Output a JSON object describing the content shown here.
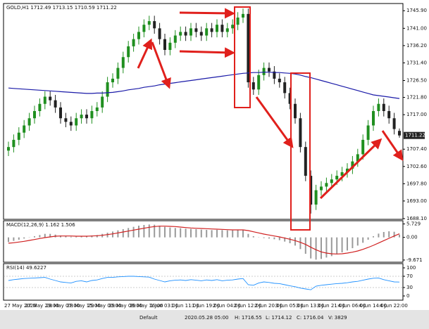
{
  "chart_data": [
    {
      "type": "candlestick",
      "title": "GOLD,H1  1712.49 1713.15 1710.59 1711.22",
      "up_color": "#1f8f1f",
      "down_color": "#222222",
      "categories": [
        "27 May 2020",
        null,
        null,
        null,
        "27 May 23:00",
        null,
        null,
        null,
        "28 May 07:00",
        null,
        null,
        null,
        "28 May 15:00",
        null,
        null,
        null,
        "29 May 00:00",
        null,
        null,
        null,
        "29 May 08:00",
        null,
        null,
        null,
        "29 May 16:00",
        null,
        null,
        null,
        "1 Jun 03:00",
        null,
        null,
        null,
        "1 Jun 11:00",
        null,
        null,
        null,
        "1 Jun 19:00",
        null,
        null,
        null,
        "2 Jun 04:00",
        null,
        null,
        null,
        "2 Jun 12:00",
        null,
        null,
        null,
        "2 Jun 20:00",
        null,
        null,
        null,
        "3 Jun 05:00",
        null,
        null,
        null,
        "3 Jun 13:00",
        null,
        null,
        null,
        "3 Jun 21:00",
        null,
        null,
        null,
        "4 Jun 06:00",
        null,
        null,
        null,
        "4 Jun 14:00",
        null,
        null,
        null,
        "4 Jun 22:00",
        null,
        null,
        null
      ],
      "open": [
        1707,
        1708,
        1710,
        1712,
        1714,
        1716,
        1718,
        1720,
        1722,
        1721,
        1719,
        1716,
        1715,
        1714,
        1716,
        1717,
        1716,
        1718,
        1719,
        1722,
        1726,
        1727,
        1730,
        1733,
        1736,
        1738,
        1740,
        1742,
        1743,
        1741,
        1738,
        1735,
        1737,
        1739,
        1740,
        1739,
        1741,
        1740,
        1739,
        1741,
        1740,
        1742,
        1740,
        1741,
        1742,
        1744,
        1745,
        1726,
        1724,
        1728,
        1730,
        1729,
        1727,
        1726,
        1723,
        1720,
        1716,
        1708,
        1700,
        1692,
        1696,
        1697,
        1698,
        1699,
        1700,
        1701,
        1702,
        1704,
        1706,
        1710,
        1714,
        1718,
        1720,
        1718,
        1716,
        1712.49
      ],
      "high": [
        1709.5,
        1711.5,
        1713.5,
        1715.5,
        1717.5,
        1719.5,
        1721.5,
        1723.5,
        1723.5,
        1722.5,
        1720.5,
        1717.5,
        1716.5,
        1717.5,
        1718.5,
        1718.5,
        1719.5,
        1720.5,
        1723.5,
        1727.5,
        1728.5,
        1731.5,
        1734.5,
        1737.5,
        1739.5,
        1741.5,
        1743.5,
        1744.5,
        1744.5,
        1742.5,
        1739.5,
        1738.5,
        1740.5,
        1741.5,
        1741.5,
        1742.5,
        1742.5,
        1741.5,
        1742.5,
        1742.5,
        1743.5,
        1743.5,
        1742.5,
        1743.5,
        1745.5,
        1746.5,
        1746.5,
        1727.5,
        1729.5,
        1731.5,
        1731.5,
        1730.5,
        1728.5,
        1727.5,
        1724.5,
        1721.5,
        1717.5,
        1709.5,
        1701.5,
        1697.5,
        1698.5,
        1699.5,
        1700.5,
        1701.5,
        1702.5,
        1703.5,
        1705.5,
        1707.5,
        1711.5,
        1715.5,
        1719.5,
        1721.5,
        1721.5,
        1719.5,
        1717.5,
        1713.15
      ],
      "low": [
        1705.5,
        1706.5,
        1708.5,
        1710.5,
        1712.5,
        1714.5,
        1716.5,
        1718.5,
        1719.5,
        1717.5,
        1714.5,
        1713.5,
        1712.5,
        1712.5,
        1714.5,
        1714.5,
        1714.5,
        1716.5,
        1717.5,
        1720.5,
        1724.5,
        1725.5,
        1728.5,
        1731.5,
        1734.5,
        1736.5,
        1738.5,
        1740.5,
        1739.5,
        1736.5,
        1733.5,
        1733.5,
        1735.5,
        1737.5,
        1737.5,
        1737.5,
        1738.5,
        1737.5,
        1737.5,
        1738.5,
        1738.5,
        1738.5,
        1738.5,
        1739.5,
        1740.5,
        1742.5,
        1724.5,
        1722.5,
        1722.5,
        1726.5,
        1727.5,
        1725.5,
        1724.5,
        1721.5,
        1718.5,
        1714.5,
        1706.5,
        1698.5,
        1689.5,
        1690.5,
        1694.5,
        1695.5,
        1696.5,
        1697.5,
        1698.5,
        1699.5,
        1700.5,
        1702.5,
        1704.5,
        1708.5,
        1712.5,
        1716.5,
        1716.5,
        1714.5,
        1711.5,
        1710.59
      ],
      "close": [
        1708,
        1710,
        1712,
        1714,
        1716,
        1718,
        1720,
        1722,
        1721,
        1719,
        1716,
        1715,
        1714,
        1716,
        1717,
        1716,
        1718,
        1719,
        1722,
        1726,
        1727,
        1730,
        1733,
        1736,
        1738,
        1740,
        1742,
        1743,
        1741,
        1738,
        1735,
        1737,
        1739,
        1740,
        1739,
        1741,
        1740,
        1739,
        1741,
        1740,
        1742,
        1740,
        1741,
        1742,
        1744,
        1745,
        1726,
        1724,
        1728,
        1730,
        1729,
        1727,
        1726,
        1723,
        1720,
        1716,
        1708,
        1700,
        1692,
        1696,
        1697,
        1698,
        1699,
        1700,
        1701,
        1702,
        1704,
        1706,
        1710,
        1714,
        1718,
        1720,
        1718,
        1716,
        1713,
        1711.22
      ],
      "series": [
        {
          "color": "#1a1aa8",
          "values": [
            1724.4,
            1724.3,
            1724.2,
            1724.1,
            1724.0,
            1723.9,
            1723.8,
            1723.7,
            1723.6,
            1723.5,
            1723.4,
            1723.3,
            1723.2,
            1723.1,
            1723.0,
            1722.9,
            1722.9,
            1723.0,
            1723.0,
            1723.1,
            1723.2,
            1723.4,
            1723.6,
            1723.9,
            1724.1,
            1724.3,
            1724.6,
            1724.8,
            1725.0,
            1725.3,
            1725.5,
            1725.7,
            1725.9,
            1726.1,
            1726.3,
            1726.5,
            1726.7,
            1726.9,
            1727.1,
            1727.3,
            1727.5,
            1727.7,
            1727.9,
            1728.1,
            1728.3,
            1728.5,
            1728.6,
            1728.7,
            1728.7,
            1728.8,
            1728.8,
            1728.7,
            1728.7,
            1728.6,
            1728.5,
            1728.3,
            1728.0,
            1727.6,
            1727.3,
            1726.9,
            1726.5,
            1726.1,
            1725.7,
            1725.3,
            1724.9,
            1724.5,
            1724.1,
            1723.7,
            1723.3,
            1722.9,
            1722.5,
            1722.3,
            1722.1,
            1721.9,
            1721.7,
            1721.5
          ]
        }
      ],
      "ylim": [
        1687.9,
        1747.9
      ],
      "yticks": [
        {
          "value": 1745.9,
          "label": "1745.90"
        },
        {
          "value": 1741,
          "label": "1741.00"
        },
        {
          "value": 1736.2,
          "label": "1736.20"
        },
        {
          "value": 1731.4,
          "label": "1731.40"
        },
        {
          "value": 1726.5,
          "label": "1726.50"
        },
        {
          "value": 1721.8,
          "label": "1721.80"
        },
        {
          "value": 1717,
          "label": "1717.00"
        },
        {
          "value": 1707.4,
          "label": "1707.40"
        },
        {
          "value": 1702.6,
          "label": "1702.60"
        },
        {
          "value": 1697.8,
          "label": "1697.80"
        },
        {
          "value": 1693,
          "label": "1693.00"
        },
        {
          "value": 1688.1,
          "label": "1688.10"
        }
      ]
    },
    {
      "type": "macd",
      "title": "MACD(12,26,9) 1.162 1.506",
      "series": [
        {
          "type": "bar",
          "color": "#9a9a9a",
          "values": [
            -2,
            -1.5,
            -1,
            -0.5,
            0,
            0.5,
            1,
            1.5,
            1.5,
            1.2,
            0.8,
            0.5,
            0.3,
            0.3,
            0.5,
            0.6,
            0.8,
            1,
            1.5,
            2,
            2.5,
            3,
            3.5,
            4,
            4.5,
            5,
            5.3,
            5.5,
            5.4,
            5,
            4.5,
            4.2,
            4,
            3.9,
            3.7,
            3.6,
            3.5,
            3.3,
            3.2,
            3.1,
            3.2,
            3.1,
            3,
            3,
            3.1,
            3.3,
            1.5,
            0.5,
            0,
            -0.3,
            -0.5,
            -0.8,
            -1.2,
            -1.8,
            -2.5,
            -3.5,
            -5,
            -7,
            -9,
            -9.5,
            -9.2,
            -8.6,
            -8,
            -7.2,
            -6.4,
            -5.6,
            -4.6,
            -3.5,
            -2.3,
            -1,
            0.5,
            1.6,
            2.3,
            2.6,
            2.4,
            1.162
          ]
        },
        {
          "type": "line",
          "color": "#d02020",
          "values": [
            -2.5,
            -2.3,
            -2,
            -1.7,
            -1.3,
            -0.9,
            -0.5,
            -0.1,
            0.2,
            0.5,
            0.6,
            0.6,
            0.6,
            0.5,
            0.5,
            0.5,
            0.6,
            0.7,
            0.9,
            1.2,
            1.5,
            1.9,
            2.3,
            2.7,
            3.1,
            3.5,
            3.9,
            4.3,
            4.6,
            4.8,
            4.8,
            4.7,
            4.6,
            4.4,
            4.2,
            4,
            3.9,
            3.8,
            3.7,
            3.6,
            3.5,
            3.4,
            3.3,
            3.2,
            3.2,
            3.2,
            2.9,
            2.4,
            1.9,
            1.4,
            1,
            0.6,
            0.2,
            -0.3,
            -0.8,
            -1.4,
            -2.1,
            -3,
            -4.2,
            -5.3,
            -6.2,
            -6.7,
            -7,
            -7.1,
            -7,
            -6.7,
            -6.3,
            -5.8,
            -5.1,
            -4.3,
            -3.4,
            -2.4,
            -1.4,
            -0.4,
            0.6,
            1.506
          ]
        }
      ],
      "ylim": [
        -10.3,
        6.5
      ],
      "yticks": [
        5.729,
        {
          "value": 0,
          "label": "0.00"
        },
        -9.671
      ]
    },
    {
      "type": "line",
      "title": "RSI(14) 49.6227",
      "series": [
        {
          "color": "#1e90ff",
          "values": [
            55,
            58,
            60,
            62,
            63,
            64,
            65,
            66,
            60,
            55,
            50,
            48,
            46,
            52,
            54,
            50,
            55,
            57,
            62,
            66,
            66,
            68,
            69,
            70,
            70,
            69,
            68,
            67,
            60,
            55,
            50,
            54,
            56,
            57,
            55,
            58,
            56,
            54,
            57,
            55,
            58,
            54,
            56,
            57,
            60,
            62,
            40,
            38,
            46,
            50,
            48,
            45,
            44,
            40,
            36,
            33,
            28,
            25,
            22,
            35,
            38,
            40,
            42,
            44,
            45,
            47,
            50,
            52,
            56,
            60,
            63,
            64,
            58,
            54,
            50,
            49.6227
          ]
        }
      ],
      "ylim": [
        0,
        100
      ],
      "yticks": [
        0,
        30,
        70,
        100
      ]
    }
  ],
  "status_bar": {
    "profile": "Default",
    "time": "2020.05.28 05:00",
    "high": "H: 1716.55",
    "low": "L: 1714.12",
    "close": "C: 1716.04",
    "volume": "V: 3829"
  }
}
